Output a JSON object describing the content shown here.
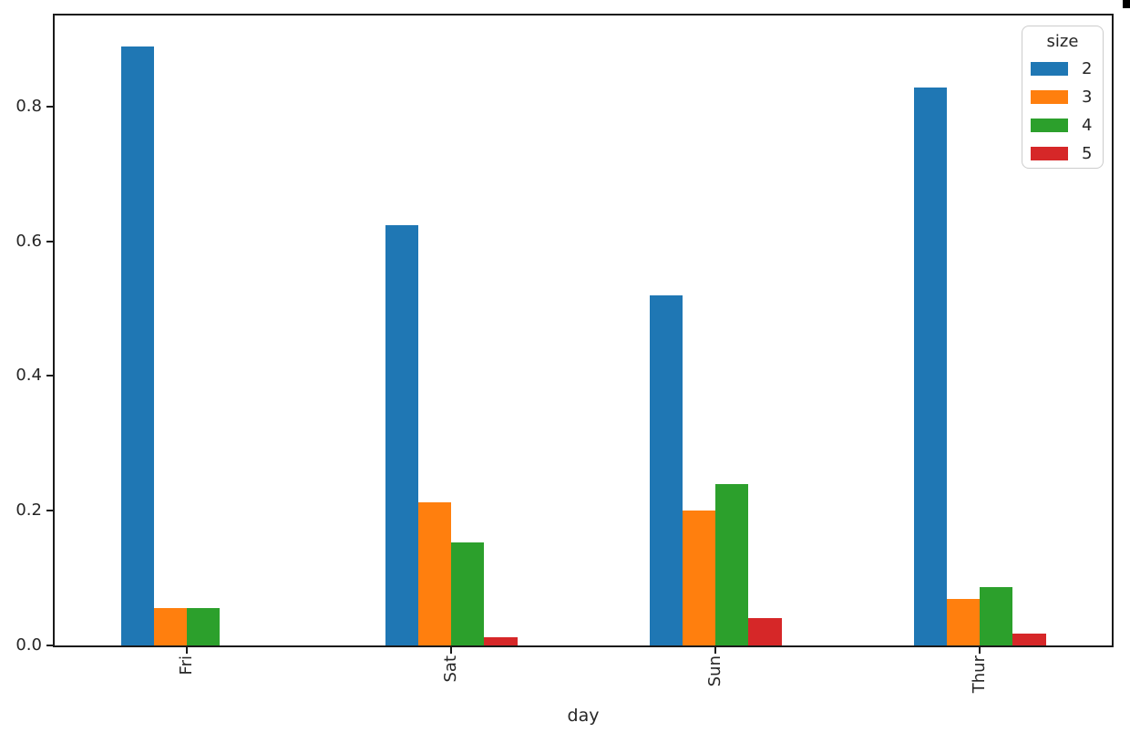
{
  "chart_data": {
    "type": "bar",
    "title": "",
    "xlabel": "day",
    "ylabel": "",
    "legend_title": "size",
    "legend_position": "upper right",
    "grid": false,
    "categories": [
      "Fri",
      "Sat",
      "Sun",
      "Thur"
    ],
    "series": [
      {
        "name": "2",
        "color": "#1f77b4",
        "values": [
          0.8889,
          0.6235,
          0.52,
          0.8276
        ]
      },
      {
        "name": "3",
        "color": "#ff7f0e",
        "values": [
          0.0556,
          0.2118,
          0.2,
          0.069
        ]
      },
      {
        "name": "4",
        "color": "#2ca02c",
        "values": [
          0.0556,
          0.1529,
          0.24,
          0.0862
        ]
      },
      {
        "name": "5",
        "color": "#d62728",
        "values": [
          0.0,
          0.0118,
          0.04,
          0.0172
        ]
      }
    ],
    "ylim": [
      0,
      0.935
    ],
    "yticks": [
      "0.0",
      "0.2",
      "0.4",
      "0.6",
      "0.8"
    ],
    "x_tick_rotation": 90,
    "axis_color": "#1a1a1a",
    "background_color": "#ffffff"
  }
}
